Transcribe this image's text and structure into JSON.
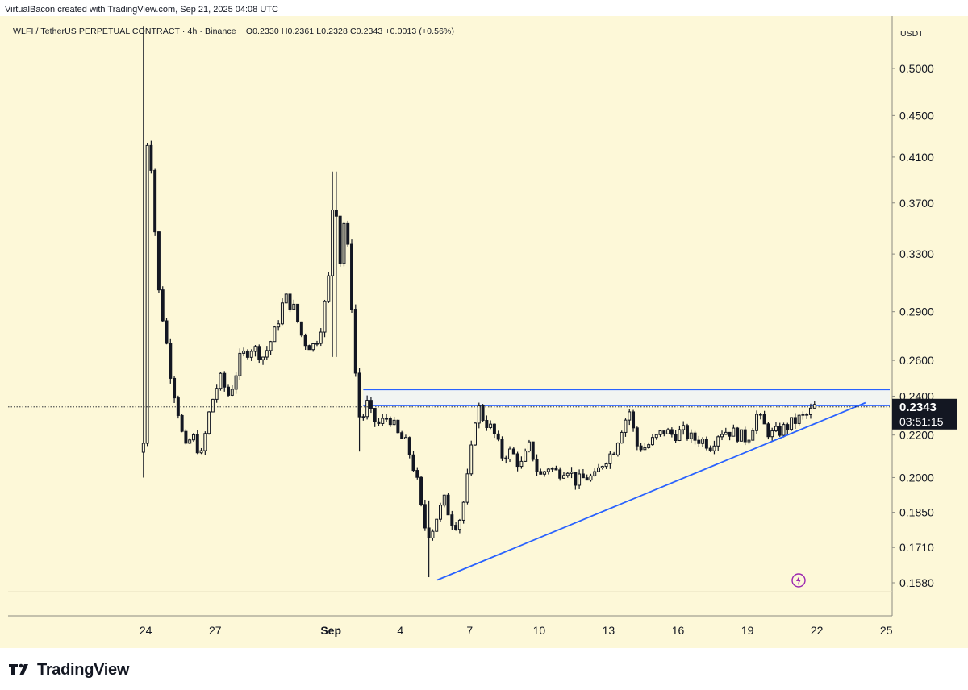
{
  "header": {
    "attribution": "VirtualBacon created with TradingView.com, Sep 21, 2025 04:08 UTC"
  },
  "legend": {
    "symbol": "WLFI / TetherUS PERPETUAL CONTRACT",
    "timeframe": "4h",
    "exchange": "Binance",
    "open": "O0.2330",
    "high": "H0.2361",
    "low": "L0.2328",
    "close": "C0.2343",
    "change": "+0.0013 (+0.56%)"
  },
  "footer": {
    "brand": "TradingView",
    "logo_icon": "tradingview-logo-icon"
  },
  "colors": {
    "background": "#fdf8d8",
    "candle": "#131722",
    "trendline": "#2962ff",
    "zone_fill": "#eef3f7",
    "price_label_bg": "#131722",
    "lightning": "#9c27b0"
  },
  "chart_data": {
    "type": "candlestick",
    "title": "WLFI / TetherUS PERPETUAL CONTRACT · 4h · Binance",
    "y_axis_unit": "USDT",
    "y_scale": "log",
    "y_ticks": [
      "0.5000",
      "0.4500",
      "0.4100",
      "0.3700",
      "0.3300",
      "0.2900",
      "0.2600",
      "0.2400",
      "0.2200",
      "0.2000",
      "0.1850",
      "0.1710",
      "0.1580"
    ],
    "x_ticks": [
      {
        "label": "24",
        "x": 23,
        "bold": false
      },
      {
        "label": "27",
        "x": 26,
        "bold": false
      },
      {
        "label": "Sep",
        "x": 31,
        "bold": true
      },
      {
        "label": "4",
        "x": 34,
        "bold": false
      },
      {
        "label": "7",
        "x": 37,
        "bold": false
      },
      {
        "label": "10",
        "x": 40,
        "bold": false
      },
      {
        "label": "13",
        "x": 43,
        "bold": false
      },
      {
        "label": "16",
        "x": 46,
        "bold": false
      },
      {
        "label": "19",
        "x": 49,
        "bold": false
      },
      {
        "label": "22",
        "x": 52,
        "bold": false
      },
      {
        "label": "25",
        "x": 55,
        "bold": false
      }
    ],
    "x_range": [
      17.05,
      55.15
    ],
    "ylim": [
      0.153,
      0.55
    ],
    "current_price": "0.2343",
    "countdown": "03:51:15",
    "resistance_zone": {
      "lower": 0.235,
      "upper": 0.2435,
      "x_start": 32.4,
      "x_end": 55.15
    },
    "support_trendline": {
      "x1": 35.6,
      "y1": 0.159,
      "x2": 54.1,
      "y2": 0.2365
    },
    "current_price_line": 0.2343,
    "candle_day_range": [
      22.9,
      51.9
    ],
    "path_anchors": [
      {
        "x": 22.9,
        "price": 0.216
      },
      {
        "x": 22.95,
        "price": 0.43
      },
      {
        "x": 23.15,
        "price": 0.42
      },
      {
        "x": 23.3,
        "price": 0.39
      },
      {
        "x": 23.5,
        "price": 0.31
      },
      {
        "x": 23.8,
        "price": 0.28
      },
      {
        "x": 24.1,
        "price": 0.25
      },
      {
        "x": 24.4,
        "price": 0.232
      },
      {
        "x": 24.7,
        "price": 0.212
      },
      {
        "x": 25.0,
        "price": 0.22
      },
      {
        "x": 25.4,
        "price": 0.21
      },
      {
        "x": 25.8,
        "price": 0.235
      },
      {
        "x": 26.2,
        "price": 0.25
      },
      {
        "x": 26.6,
        "price": 0.24
      },
      {
        "x": 27.1,
        "price": 0.262
      },
      {
        "x": 27.6,
        "price": 0.268
      },
      {
        "x": 28.1,
        "price": 0.262
      },
      {
        "x": 28.6,
        "price": 0.278
      },
      {
        "x": 29.0,
        "price": 0.3
      },
      {
        "x": 29.4,
        "price": 0.292
      },
      {
        "x": 29.8,
        "price": 0.272
      },
      {
        "x": 30.2,
        "price": 0.268
      },
      {
        "x": 30.5,
        "price": 0.276
      },
      {
        "x": 30.8,
        "price": 0.3
      },
      {
        "x": 31.0,
        "price": 0.325
      },
      {
        "x": 31.1,
        "price": 0.388
      },
      {
        "x": 31.2,
        "price": 0.372
      },
      {
        "x": 31.4,
        "price": 0.325
      },
      {
        "x": 31.6,
        "price": 0.36
      },
      {
        "x": 31.75,
        "price": 0.33
      },
      {
        "x": 31.9,
        "price": 0.295
      },
      {
        "x": 32.1,
        "price": 0.245
      },
      {
        "x": 32.3,
        "price": 0.222
      },
      {
        "x": 32.5,
        "price": 0.238
      },
      {
        "x": 32.8,
        "price": 0.228
      },
      {
        "x": 33.1,
        "price": 0.225
      },
      {
        "x": 33.5,
        "price": 0.23
      },
      {
        "x": 33.9,
        "price": 0.22
      },
      {
        "x": 34.3,
        "price": 0.215
      },
      {
        "x": 34.7,
        "price": 0.2
      },
      {
        "x": 35.0,
        "price": 0.18
      },
      {
        "x": 35.3,
        "price": 0.176
      },
      {
        "x": 35.6,
        "price": 0.184
      },
      {
        "x": 35.9,
        "price": 0.19
      },
      {
        "x": 36.2,
        "price": 0.182
      },
      {
        "x": 36.5,
        "price": 0.18
      },
      {
        "x": 36.8,
        "price": 0.192
      },
      {
        "x": 37.1,
        "price": 0.215
      },
      {
        "x": 37.3,
        "price": 0.236
      },
      {
        "x": 37.6,
        "price": 0.228
      },
      {
        "x": 38.0,
        "price": 0.222
      },
      {
        "x": 38.4,
        "price": 0.21
      },
      {
        "x": 38.8,
        "price": 0.212
      },
      {
        "x": 39.2,
        "price": 0.205
      },
      {
        "x": 39.6,
        "price": 0.215
      },
      {
        "x": 40.0,
        "price": 0.2
      },
      {
        "x": 40.4,
        "price": 0.205
      },
      {
        "x": 40.8,
        "price": 0.202
      },
      {
        "x": 41.2,
        "price": 0.205
      },
      {
        "x": 41.6,
        "price": 0.198
      },
      {
        "x": 42.0,
        "price": 0.2
      },
      {
        "x": 42.4,
        "price": 0.2
      },
      {
        "x": 42.8,
        "price": 0.208
      },
      {
        "x": 43.2,
        "price": 0.212
      },
      {
        "x": 43.6,
        "price": 0.225
      },
      {
        "x": 43.9,
        "price": 0.232
      },
      {
        "x": 44.2,
        "price": 0.215
      },
      {
        "x": 44.6,
        "price": 0.214
      },
      {
        "x": 45.0,
        "price": 0.218
      },
      {
        "x": 45.4,
        "price": 0.222
      },
      {
        "x": 45.8,
        "price": 0.22
      },
      {
        "x": 46.2,
        "price": 0.222
      },
      {
        "x": 46.6,
        "price": 0.218
      },
      {
        "x": 47.0,
        "price": 0.218
      },
      {
        "x": 47.4,
        "price": 0.215
      },
      {
        "x": 47.8,
        "price": 0.222
      },
      {
        "x": 48.2,
        "price": 0.222
      },
      {
        "x": 48.6,
        "price": 0.22
      },
      {
        "x": 49.0,
        "price": 0.218
      },
      {
        "x": 49.4,
        "price": 0.23
      },
      {
        "x": 49.7,
        "price": 0.225
      },
      {
        "x": 50.0,
        "price": 0.22
      },
      {
        "x": 50.4,
        "price": 0.222
      },
      {
        "x": 50.8,
        "price": 0.225
      },
      {
        "x": 51.2,
        "price": 0.228
      },
      {
        "x": 51.6,
        "price": 0.23
      },
      {
        "x": 51.9,
        "price": 0.2343
      }
    ],
    "wick_extremes": [
      {
        "x": 22.95,
        "high": 0.55,
        "low": 0.2
      },
      {
        "x": 31.15,
        "high": 0.397,
        "low": 0.262
      },
      {
        "x": 32.3,
        "high": 0.252,
        "low": 0.212
      },
      {
        "x": 35.3,
        "high": 0.19,
        "low": 0.16
      }
    ]
  },
  "icons": {
    "alert": "lightning-icon"
  }
}
